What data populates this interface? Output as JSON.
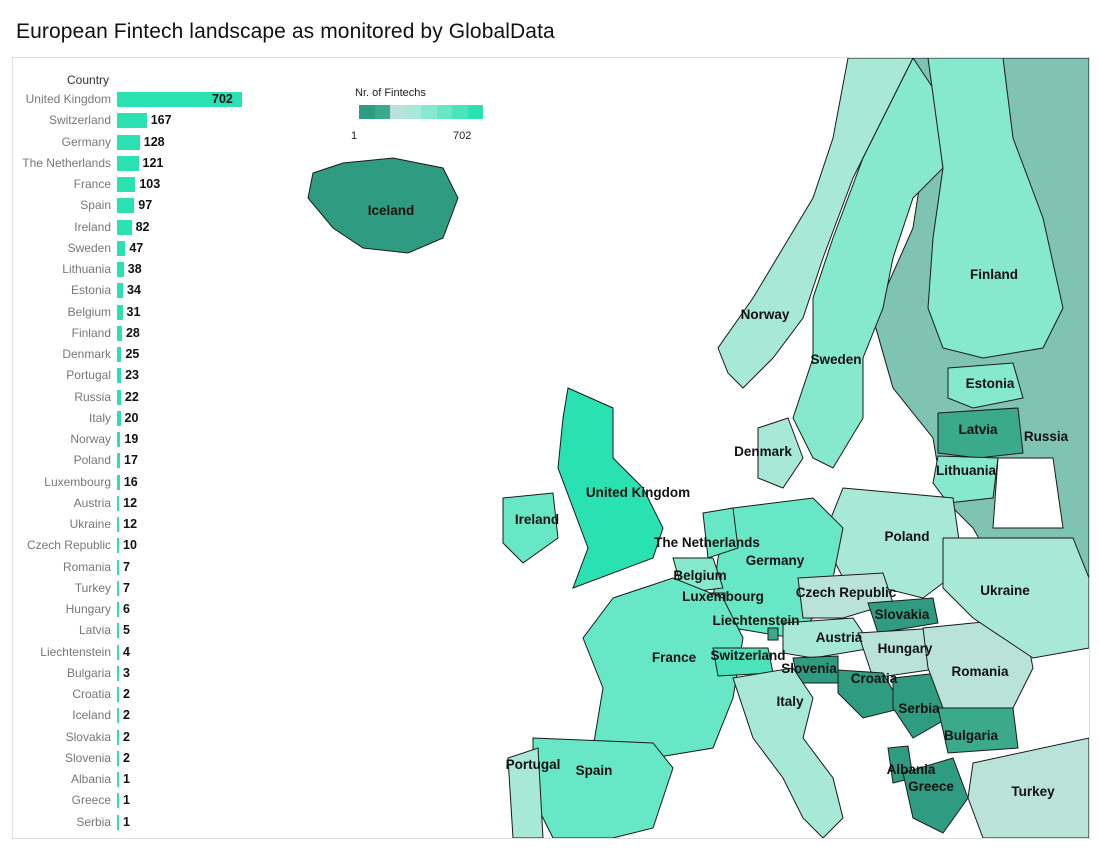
{
  "title": "European Fintech landscape as monitored by GlobalData",
  "legend": {
    "title": "Nr. of Fintechs",
    "min_label": "1",
    "max_label": "702",
    "ramp_colors": [
      "#2f9c82",
      "#3aa98c",
      "#b9e2d8",
      "#a8e8d6",
      "#86e8cc",
      "#67e7c5",
      "#4ae3bb",
      "#2ae1b1"
    ]
  },
  "colors": {
    "bar": "#2ae1b1",
    "sea": "#ffffff",
    "border": "#1a1a1a",
    "no_data": "#ffffff"
  },
  "chart_data": [
    {
      "type": "bar",
      "orientation": "horizontal",
      "column_header": "Country",
      "categories": [
        "United Kingdom",
        "Switzerland",
        "Germany",
        "The Netherlands",
        "France",
        "Spain",
        "Ireland",
        "Sweden",
        "Lithuania",
        "Estonia",
        "Belgium",
        "Finland",
        "Denmark",
        "Portugal",
        "Russia",
        "Italy",
        "Norway",
        "Poland",
        "Luxembourg",
        "Austria",
        "Ukraine",
        "Czech Republic",
        "Romania",
        "Turkey",
        "Hungary",
        "Latvia",
        "Liechtenstein",
        "Bulgaria",
        "Croatia",
        "Iceland",
        "Slovakia",
        "Slovenia",
        "Albania",
        "Greece",
        "Serbia"
      ],
      "values": [
        702,
        167,
        128,
        121,
        103,
        97,
        82,
        47,
        38,
        34,
        31,
        28,
        25,
        23,
        22,
        20,
        19,
        17,
        16,
        12,
        12,
        10,
        7,
        7,
        6,
        5,
        4,
        3,
        2,
        2,
        2,
        2,
        1,
        1,
        1
      ],
      "xlim": [
        0,
        702
      ]
    },
    {
      "type": "map",
      "region": "Europe",
      "measure": "Nr. of Fintechs",
      "map_labels": [
        "Iceland",
        "Norway",
        "Sweden",
        "Finland",
        "Estonia",
        "Latvia",
        "Russia",
        "Lithuania",
        "Denmark",
        "United Kingdom",
        "Ireland",
        "The Netherlands",
        "Germany",
        "Poland",
        "Belgium",
        "Luxembourg",
        "Czech Republic",
        "Ukraine",
        "Slovakia",
        "Liechtenstein",
        "Austria",
        "Hungary",
        "France",
        "Switzerland",
        "Slovenia",
        "Romania",
        "Croatia",
        "Italy",
        "Serbia",
        "Bulgaria",
        "Albania",
        "Greece",
        "Turkey",
        "Portugal",
        "Spain"
      ]
    }
  ]
}
